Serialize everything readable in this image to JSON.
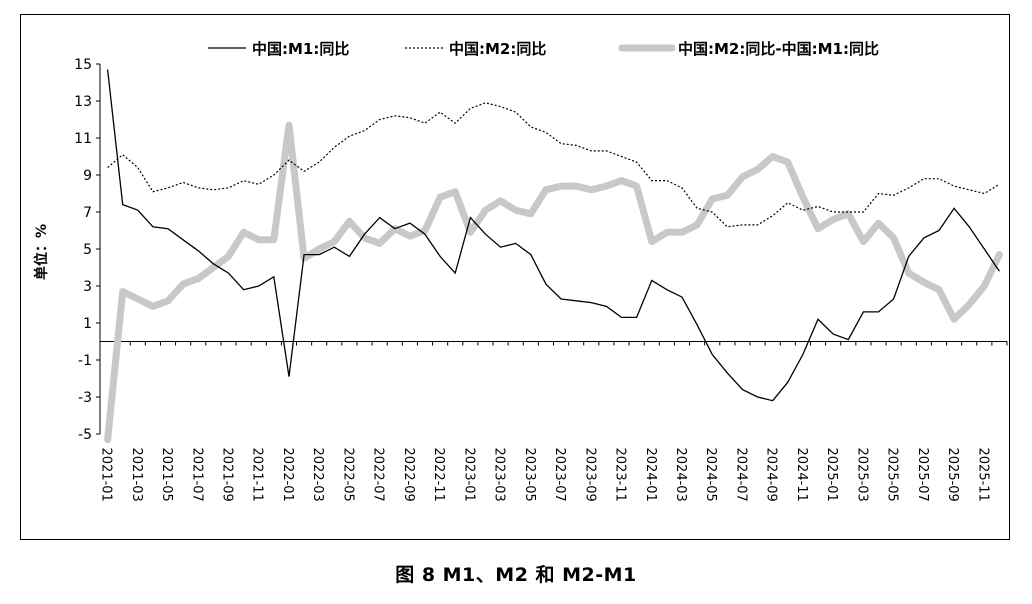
{
  "caption": "图 8   M1、M2 和 M2-M1",
  "chart_data": {
    "type": "line",
    "ylabel": "单位：%",
    "xlabel": "",
    "ylim": [
      -5,
      15
    ],
    "yticks": [
      15,
      13,
      11,
      9,
      7,
      5,
      3,
      1,
      -1,
      -3,
      -5
    ],
    "grid": false,
    "legend_position": "top",
    "x": [
      "2021-01",
      "2021-02",
      "2021-03",
      "2021-04",
      "2021-05",
      "2021-06",
      "2021-07",
      "2021-08",
      "2021-09",
      "2021-10",
      "2021-11",
      "2021-12",
      "2022-01",
      "2022-02",
      "2022-03",
      "2022-04",
      "2022-05",
      "2022-06",
      "2022-07",
      "2022-08",
      "2022-09",
      "2022-10",
      "2022-11",
      "2022-12",
      "2023-01",
      "2023-02",
      "2023-03",
      "2023-04",
      "2023-05",
      "2023-06",
      "2023-07",
      "2023-08",
      "2023-09",
      "2023-10",
      "2023-11",
      "2023-12",
      "2024-01",
      "2024-02",
      "2024-03",
      "2024-04",
      "2024-05",
      "2024-06",
      "2024-07",
      "2024-08",
      "2024-09",
      "2024-10",
      "2024-11",
      "2024-12",
      "2025-01",
      "2025-02",
      "2025-03",
      "2025-04",
      "2025-05",
      "2025-06",
      "2025-07",
      "2025-08",
      "2025-09",
      "2025-10",
      "2025-11",
      "2025-12"
    ],
    "xtick_labels": [
      "2021-01",
      "2021-03",
      "2021-05",
      "2021-07",
      "2021-09",
      "2021-11",
      "2022-01",
      "2022-03",
      "2022-05",
      "2022-07",
      "2022-09",
      "2022-11",
      "2023-01",
      "2023-03",
      "2023-05",
      "2023-07",
      "2023-09",
      "2023-11",
      "2024-01",
      "2024-03",
      "2024-05",
      "2024-07",
      "2024-09",
      "2024-11",
      "2025-01",
      "2025-03",
      "2025-05",
      "2025-07",
      "2025-09",
      "2025-11"
    ],
    "series": [
      {
        "name": "中国:M1:同比",
        "style": "solid",
        "color": "#000000",
        "values": [
          14.7,
          7.4,
          7.1,
          6.2,
          6.1,
          5.5,
          4.9,
          4.2,
          3.7,
          2.8,
          3.0,
          3.5,
          -1.9,
          4.7,
          4.7,
          5.1,
          4.6,
          5.8,
          6.7,
          6.1,
          6.4,
          5.8,
          4.6,
          3.7,
          6.7,
          5.8,
          5.1,
          5.3,
          4.7,
          3.1,
          2.3,
          2.2,
          2.1,
          1.9,
          1.3,
          1.3,
          3.3,
          2.8,
          2.4,
          0.9,
          -0.7,
          -1.7,
          -2.6,
          -3.0,
          -3.2,
          -2.2,
          -0.7,
          1.2,
          0.4,
          0.1,
          1.6,
          1.6,
          2.3,
          4.6,
          5.6,
          6.0,
          7.2,
          6.2,
          5.0,
          3.8
        ]
      },
      {
        "name": "中国:M2:同比",
        "style": "dotted",
        "color": "#000000",
        "values": [
          9.4,
          10.1,
          9.4,
          8.1,
          8.3,
          8.6,
          8.3,
          8.2,
          8.3,
          8.7,
          8.5,
          9.0,
          9.8,
          9.2,
          9.7,
          10.5,
          11.1,
          11.4,
          12.0,
          12.2,
          12.1,
          11.8,
          12.4,
          11.8,
          12.6,
          12.9,
          12.7,
          12.4,
          11.6,
          11.3,
          10.7,
          10.6,
          10.3,
          10.3,
          10.0,
          9.7,
          8.7,
          8.7,
          8.3,
          7.2,
          7.0,
          6.2,
          6.3,
          6.3,
          6.8,
          7.5,
          7.1,
          7.3,
          7.0,
          7.0,
          7.0,
          8.0,
          7.9,
          8.3,
          8.8,
          8.8,
          8.4,
          8.2,
          8.0,
          8.5
        ]
      },
      {
        "name": "中国:M2:同比-中国:M1:同比",
        "style": "thick",
        "color": "#c8c8c8",
        "values": [
          -5.3,
          2.7,
          2.3,
          1.9,
          2.2,
          3.1,
          3.4,
          4.0,
          4.6,
          5.9,
          5.5,
          5.5,
          11.7,
          4.5,
          5.0,
          5.4,
          6.5,
          5.6,
          5.3,
          6.1,
          5.7,
          6.0,
          7.8,
          8.1,
          5.9,
          7.1,
          7.6,
          7.1,
          6.9,
          8.2,
          8.4,
          8.4,
          8.2,
          8.4,
          8.7,
          8.4,
          5.4,
          5.9,
          5.9,
          6.3,
          7.7,
          7.9,
          8.9,
          9.3,
          10.0,
          9.7,
          7.8,
          6.1,
          6.6,
          6.9,
          5.4,
          6.4,
          5.6,
          3.7,
          3.2,
          2.8,
          1.2,
          2.0,
          3.0,
          4.7
        ]
      }
    ]
  }
}
